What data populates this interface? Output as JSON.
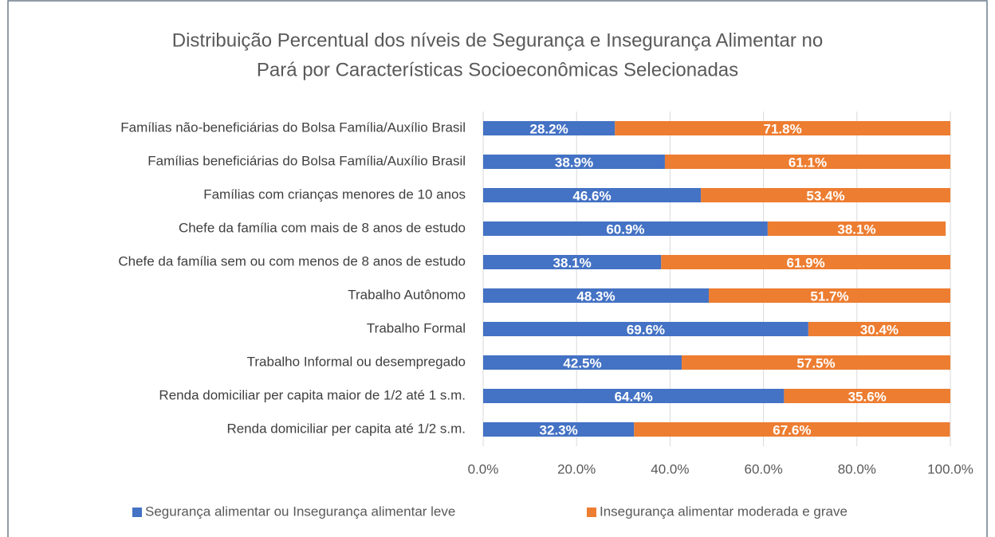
{
  "chart_data": {
    "type": "stacked-barh",
    "title": [
      "Distribuição Percentual dos níveis de Segurança e Insegurança Alimentar no",
      "Pará por Características Socioeconômicas Selecionadas"
    ],
    "categories": [
      "Famílias não-beneficiárias do Bolsa Família/Auxílio Brasil",
      "Famílias beneficiárias do Bolsa Família/Auxílio Brasil",
      "Famílias com crianças menores de 10 anos",
      "Chefe da família com mais de 8 anos de estudo",
      "Chefe da família sem ou com menos de 8 anos de estudo",
      "Trabalho Autônomo",
      "Trabalho Formal",
      "Trabalho Informal ou desempregado",
      "Renda domiciliar per capita maior de 1/2 até 1 s.m.",
      "Renda domiciliar per capita até 1/2 s.m."
    ],
    "series": [
      {
        "name": "Segurança alimentar ou Insegurança alimentar leve",
        "color": "#4472c4",
        "values": [
          28.2,
          38.9,
          46.6,
          60.9,
          38.1,
          48.3,
          69.6,
          42.5,
          64.4,
          32.3
        ],
        "value_labels": [
          "28.2%",
          "38.9%",
          "46.6%",
          "60.9%",
          "38.1%",
          "48.3%",
          "69.6%",
          "42.5%",
          "64.4%",
          "32.3%"
        ]
      },
      {
        "name": "Insegurança alimentar moderada e grave",
        "color": "#ed7d31",
        "values": [
          71.8,
          61.1,
          53.4,
          38.1,
          61.9,
          51.7,
          30.4,
          57.5,
          35.6,
          67.6
        ],
        "value_labels": [
          "71.8%",
          "61.1%",
          "53.4%",
          "38.1%",
          "61.9%",
          "51.7%",
          "30.4%",
          "57.5%",
          "35.6%",
          "67.6%"
        ]
      }
    ],
    "xlim": [
      0,
      100
    ],
    "xticks": [
      {
        "value": 0,
        "label": "0.0%"
      },
      {
        "value": 20,
        "label": "20.0%"
      },
      {
        "value": 40,
        "label": "40.0%"
      },
      {
        "value": 60,
        "label": "60.0%"
      },
      {
        "value": 80,
        "label": "80.0%"
      },
      {
        "value": 100,
        "label": "100.0%"
      }
    ],
    "grid": true,
    "legend": "bottom"
  }
}
